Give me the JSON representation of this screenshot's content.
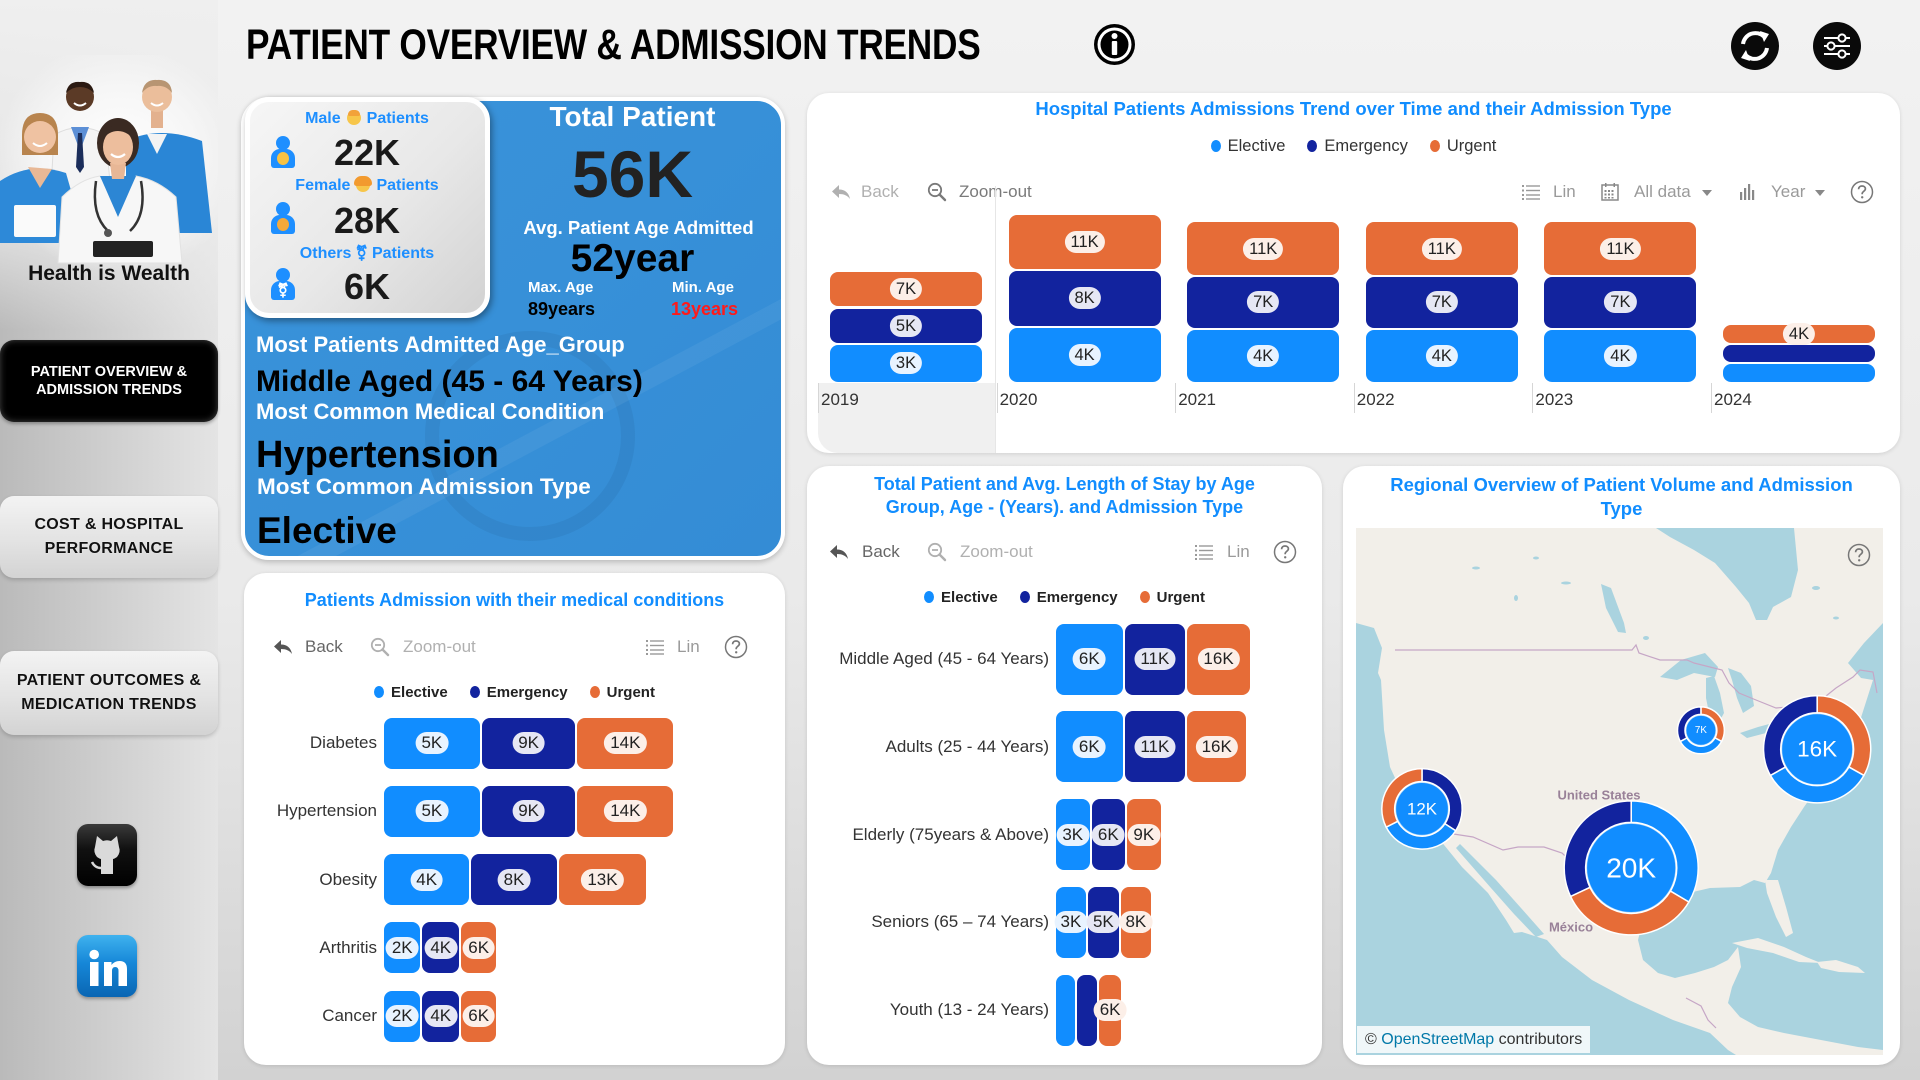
{
  "colors": {
    "elective": "#118DFF",
    "emergency": "#12239E",
    "urgent": "#E66C37",
    "title_blue": "#118DFF",
    "kpi_blue": "#3790D8",
    "min_age_red": "#FF1A1A"
  },
  "sidebar": {
    "tagline": "Health is Wealth",
    "nav": [
      {
        "label": "PATIENT OVERVIEW &\nADMISSION TRENDS",
        "active": true
      },
      {
        "label": "COST & HOSPITAL\nPERFORMANCE",
        "active": false
      },
      {
        "label": "PATIENT OUTCOMES &\nMEDICATION TRENDS",
        "active": false
      }
    ],
    "social": [
      {
        "name": "GitHub",
        "icon": "github-icon"
      },
      {
        "name": "LinkedIn",
        "icon": "linkedin-icon"
      }
    ]
  },
  "header": {
    "title": "PATIENT OVERVIEW & ADMISSION TRENDS",
    "icons": [
      "info-icon",
      "refresh-icon",
      "sliders-icon"
    ]
  },
  "kpi": {
    "gender_breakdown": [
      {
        "label": "Male",
        "emoji_icon": "man-blond-emoji-icon",
        "suffix": "Patients",
        "value": "22K"
      },
      {
        "label": "Female",
        "emoji_icon": "woman-emoji-icon",
        "suffix": "Patients",
        "value": "28K"
      },
      {
        "label": "Others",
        "glyph": "⚧",
        "suffix": "Patients",
        "value": "6K"
      }
    ],
    "total_patient": {
      "label": "Total Patient",
      "value": "56K"
    },
    "avg_age": {
      "label": "Avg. Patient Age Admitted",
      "value": "52year"
    },
    "max_age": {
      "label": "Max. Age",
      "value": "89years"
    },
    "min_age": {
      "label": "Min. Age",
      "value": "13years"
    },
    "top_age_group": {
      "label": "Most Patients Admitted Age_Group",
      "value": "Middle Aged (45 - 64 Years)"
    },
    "top_condition": {
      "label": "Most Common Medical Condition",
      "value": "Hypertension"
    },
    "top_admission_type": {
      "label": "Most Common Admission Type",
      "value": "Elective"
    }
  },
  "chart_data": [
    {
      "id": "admissions_trend",
      "type": "bar",
      "orientation": "vertical",
      "stacked": true,
      "title": "Hospital Patients Admissions Trend over Time and their Admission Type",
      "legend": "top-center",
      "xlabel": "",
      "ylabel": "",
      "unit": "K patients",
      "label_mode": "cumulative",
      "selected_category": "2019",
      "toolbar": {
        "back": "Back",
        "zoom_out": "Zoom-out",
        "scale": "Lin",
        "date_range": "All data",
        "hierarchy": "Year"
      },
      "categories": [
        "2019",
        "2020",
        "2021",
        "2022",
        "2023",
        "2024"
      ],
      "series": [
        {
          "key": "elective",
          "name": "Elective",
          "values": [
            2.6,
            3.7,
            3.6,
            3.6,
            3.6,
            1.3
          ],
          "labels": [
            "3K",
            "4K",
            "4K",
            "4K",
            "4K",
            null
          ]
        },
        {
          "key": "emergency",
          "name": "Emergency",
          "values": [
            2.4,
            3.8,
            3.5,
            3.5,
            3.5,
            1.3
          ],
          "labels": [
            "5K",
            "8K",
            "7K",
            "7K",
            "7K",
            null
          ]
        },
        {
          "key": "urgent",
          "name": "Urgent",
          "values": [
            2.4,
            3.7,
            3.6,
            3.6,
            3.6,
            1.3
          ],
          "labels": [
            "7K",
            "11K",
            "11K",
            "11K",
            "11K",
            "4K"
          ]
        }
      ]
    },
    {
      "id": "admissions_by_condition",
      "type": "bar",
      "orientation": "horizontal",
      "stacked": true,
      "title": "Patients Admission with their medical conditions",
      "legend": "top-center",
      "unit": "K patients",
      "label_mode": "cumulative",
      "toolbar": {
        "back": "Back",
        "zoom_out": "Zoom-out",
        "scale": "Lin"
      },
      "categories": [
        "Diabetes",
        "Hypertension",
        "Obesity",
        "Arthritis",
        "Cancer"
      ],
      "series": [
        {
          "key": "elective",
          "name": "Elective",
          "values": [
            4.7,
            4.7,
            4.2,
            1.85,
            1.85
          ],
          "labels": [
            "5K",
            "5K",
            "4K",
            "2K",
            "2K"
          ]
        },
        {
          "key": "emergency",
          "name": "Emergency",
          "values": [
            4.6,
            4.6,
            4.2,
            1.85,
            1.85
          ],
          "labels": [
            "9K",
            "9K",
            "8K",
            "4K",
            "4K"
          ]
        },
        {
          "key": "urgent",
          "name": "Urgent",
          "values": [
            4.7,
            4.7,
            4.3,
            1.8,
            1.8
          ],
          "labels": [
            "14K",
            "14K",
            "13K",
            "6K",
            "6K"
          ]
        }
      ]
    },
    {
      "id": "patients_by_age_group",
      "type": "bar",
      "orientation": "horizontal",
      "stacked": true,
      "title": "Total Patient and Avg. Length of Stay by Age\nGroup, Age - (Years). and Admission Type",
      "legend": "top-center",
      "unit": "K patients",
      "label_mode": "cumulative",
      "toolbar": {
        "back": "Back",
        "zoom_out": "Zoom-out",
        "scale": "Lin"
      },
      "categories": [
        "Middle Aged (45 - 64 Years)",
        "Adults (25 - 44 Years)",
        "Elderly (75years & Above)",
        "Seniors (65 – 74 Years)",
        "Youth (13 - 24 Years)"
      ],
      "series": [
        {
          "key": "elective",
          "name": "Elective",
          "values": [
            5.6,
            5.6,
            2.9,
            2.6,
            1.7
          ],
          "labels": [
            "6K",
            "6K",
            "3K",
            "3K",
            null
          ]
        },
        {
          "key": "emergency",
          "name": "Emergency",
          "values": [
            5.1,
            5.1,
            2.9,
            2.7,
            1.8
          ],
          "labels": [
            "11K",
            "11K",
            "6K",
            "5K",
            null
          ]
        },
        {
          "key": "urgent",
          "name": "Urgent",
          "values": [
            5.3,
            5.0,
            2.9,
            2.6,
            2.0
          ],
          "labels": [
            "16K",
            "16K",
            "9K",
            "8K",
            "6K"
          ]
        }
      ]
    },
    {
      "id": "regional_overview",
      "type": "map-donut",
      "title": "Regional Overview of Patient Volume and Admission\nType",
      "place_labels": [
        "United States",
        "México"
      ],
      "attribution": {
        "prefix": "©",
        "link": "OpenStreetMap",
        "suffix": "contributors"
      },
      "points": [
        {
          "total_label": "12K",
          "lon": -118.2,
          "lat": 34.7,
          "segments": [
            {
              "key": "emergency",
              "value": 4.1
            },
            {
              "key": "elective",
              "value": 4.0
            },
            {
              "key": "urgent",
              "value": 3.9
            }
          ]
        },
        {
          "total_label": "7K",
          "lon": -87.0,
          "lat": 41.6,
          "segments": [
            {
              "key": "urgent",
              "value": 2.3
            },
            {
              "key": "elective",
              "value": 2.4
            },
            {
              "key": "emergency",
              "value": 2.3
            }
          ]
        },
        {
          "total_label": "16K",
          "lon": -74.0,
          "lat": 40.0,
          "segments": [
            {
              "key": "urgent",
              "value": 5.3
            },
            {
              "key": "elective",
              "value": 5.4
            },
            {
              "key": "emergency",
              "value": 5.3
            }
          ]
        },
        {
          "total_label": "20K",
          "lon": -94.8,
          "lat": 29.1,
          "segments": [
            {
              "key": "elective",
              "value": 6.7
            },
            {
              "key": "urgent",
              "value": 6.9
            },
            {
              "key": "emergency",
              "value": 6.4
            }
          ]
        }
      ]
    }
  ]
}
